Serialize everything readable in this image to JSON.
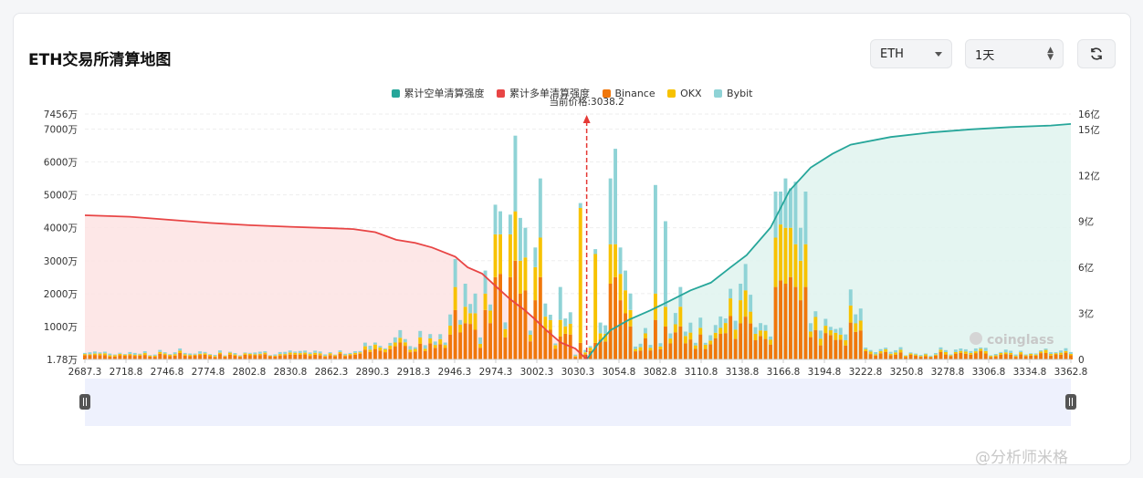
{
  "header": {
    "title": "ETH交易所清算地图",
    "asset_select": "ETH",
    "period_select": "1天",
    "refresh_icon": "refresh-icon"
  },
  "legend": [
    {
      "label": "累计空单清算强度",
      "color": "#26a69a"
    },
    {
      "label": "累计多单清算强度",
      "color": "#e84545"
    },
    {
      "label": "Binance",
      "color": "#f0770b"
    },
    {
      "label": "OKX",
      "color": "#f7c200"
    },
    {
      "label": "Bybit",
      "color": "#8fd3d6"
    }
  ],
  "chart_data": {
    "type": "bar",
    "current_price_label": "当前价格:3038.2",
    "current_price": 3038.2,
    "x_range": [
      2687.3,
      3376.8
    ],
    "x_ticks": [
      "2687.3",
      "2718.8",
      "2746.8",
      "2774.8",
      "2802.8",
      "2830.8",
      "2862.3",
      "2890.3",
      "2918.3",
      "2946.3",
      "2974.3",
      "3002.3",
      "3030.3",
      "3054.8",
      "3082.8",
      "3110.8",
      "3138.8",
      "3166.8",
      "3194.8",
      "3222.8",
      "3250.8",
      "3278.8",
      "3306.8",
      "3334.8",
      "3362.8"
    ],
    "y_left_ticks": [
      {
        "label": "1.78万",
        "value": 1.78
      },
      {
        "label": "1000万",
        "value": 1000
      },
      {
        "label": "2000万",
        "value": 2000
      },
      {
        "label": "3000万",
        "value": 3000
      },
      {
        "label": "4000万",
        "value": 4000
      },
      {
        "label": "5000万",
        "value": 5000
      },
      {
        "label": "6000万",
        "value": 6000
      },
      {
        "label": "7000万",
        "value": 7000
      },
      {
        "label": "7456万",
        "value": 7456
      }
    ],
    "y_left_range": [
      0,
      7456
    ],
    "y_right_ticks": [
      {
        "label": "0",
        "value": 0
      },
      {
        "label": "3亿",
        "value": 3
      },
      {
        "label": "6亿",
        "value": 6
      },
      {
        "label": "9亿",
        "value": 9
      },
      {
        "label": "12亿",
        "value": 12
      },
      {
        "label": "15亿",
        "value": 15
      },
      {
        "label": "16亿",
        "value": 16
      }
    ],
    "y_right_range": [
      0,
      16
    ],
    "long_cumulative": {
      "name": "累计多单清算强度",
      "x": [
        2687.3,
        2718.8,
        2746.8,
        2774.8,
        2802.8,
        2830.8,
        2862.3,
        2875,
        2890.3,
        2905,
        2918.3,
        2930,
        2946.3,
        2955,
        2965,
        2974.3,
        2985,
        2995,
        3002.3,
        3010,
        3020,
        3030.3,
        3038.2
      ],
      "y": [
        9.4,
        9.3,
        9.1,
        8.9,
        8.75,
        8.65,
        8.55,
        8.5,
        8.3,
        7.8,
        7.6,
        7.3,
        6.7,
        6.0,
        5.6,
        4.8,
        3.9,
        3.2,
        2.6,
        1.9,
        1.1,
        0.7,
        0.0
      ]
    },
    "short_cumulative": {
      "name": "累计空单清算强度",
      "x": [
        3038.2,
        3046,
        3054.8,
        3068,
        3082.8,
        3096,
        3110.8,
        3125,
        3138.8,
        3150,
        3166.8,
        3180,
        3194.8,
        3210,
        3222.8,
        3250.8,
        3278.8,
        3306.8,
        3334.8,
        3362.8,
        3376.8
      ],
      "y": [
        0.0,
        1.0,
        1.9,
        2.6,
        3.2,
        3.8,
        4.5,
        5.0,
        6.0,
        6.8,
        8.6,
        11.0,
        12.5,
        13.4,
        14.0,
        14.5,
        14.8,
        15.0,
        15.15,
        15.25,
        15.35
      ]
    },
    "bars": {
      "step": 3.5,
      "x_start": 2687.3,
      "seed": 7,
      "peaks": [
        {
          "x": 2946.3,
          "binance": 1500,
          "okx": 700,
          "bybit": 850
        },
        {
          "x": 2953.3,
          "binance": 1100,
          "okx": 500,
          "bybit": 700
        },
        {
          "x": 2960.3,
          "binance": 900,
          "okx": 500,
          "bybit": 600
        },
        {
          "x": 2967.3,
          "binance": 1500,
          "okx": 500,
          "bybit": 700
        },
        {
          "x": 2974.3,
          "binance": 2500,
          "okx": 1300,
          "bybit": 900
        },
        {
          "x": 2977.8,
          "binance": 2600,
          "okx": 1200,
          "bybit": 700
        },
        {
          "x": 2984.8,
          "binance": 2500,
          "okx": 1300,
          "bybit": 600
        },
        {
          "x": 2988.3,
          "binance": 3000,
          "okx": 1500,
          "bybit": 2300
        },
        {
          "x": 2991.8,
          "binance": 2000,
          "okx": 1000,
          "bybit": 1300
        },
        {
          "x": 2995.3,
          "binance": 2100,
          "okx": 1000,
          "bybit": 900
        },
        {
          "x": 3002.3,
          "binance": 1800,
          "okx": 1000,
          "bybit": 600
        },
        {
          "x": 3005.8,
          "binance": 2500,
          "okx": 1200,
          "bybit": 1800
        },
        {
          "x": 3009.3,
          "binance": 900,
          "okx": 400,
          "bybit": 400
        },
        {
          "x": 3019.8,
          "binance": 700,
          "okx": 500,
          "bybit": 1000
        },
        {
          "x": 3033.8,
          "binance": 500,
          "okx": 4100,
          "bybit": 150
        },
        {
          "x": 3044.3,
          "binance": 500,
          "okx": 2700,
          "bybit": 150
        },
        {
          "x": 3054.8,
          "binance": 2300,
          "okx": 1200,
          "bybit": 2000
        },
        {
          "x": 3058.3,
          "binance": 2500,
          "okx": 1000,
          "bybit": 2900
        },
        {
          "x": 3061.8,
          "binance": 1800,
          "okx": 800,
          "bybit": 800
        },
        {
          "x": 3065.3,
          "binance": 1400,
          "okx": 700,
          "bybit": 600
        },
        {
          "x": 3068.8,
          "binance": 1000,
          "okx": 500,
          "bybit": 500
        },
        {
          "x": 3086.3,
          "binance": 1200,
          "okx": 800,
          "bybit": 3300
        },
        {
          "x": 3093.3,
          "binance": 1000,
          "okx": 600,
          "bybit": 2600
        },
        {
          "x": 3103.8,
          "binance": 1000,
          "okx": 600,
          "bybit": 600
        },
        {
          "x": 3145.8,
          "binance": 1100,
          "okx": 700,
          "bybit": 500
        },
        {
          "x": 3149.3,
          "binance": 1300,
          "okx": 800,
          "bybit": 800
        },
        {
          "x": 3170.3,
          "binance": 2200,
          "okx": 1500,
          "bybit": 1400
        },
        {
          "x": 3173.8,
          "binance": 2400,
          "okx": 1700,
          "bybit": 1000
        },
        {
          "x": 3177.3,
          "binance": 2300,
          "okx": 1700,
          "bybit": 1500
        },
        {
          "x": 3180.8,
          "binance": 2500,
          "okx": 1500,
          "bybit": 1200
        },
        {
          "x": 3184.3,
          "binance": 2200,
          "okx": 1300,
          "bybit": 1900
        },
        {
          "x": 3187.8,
          "binance": 1800,
          "okx": 1200,
          "bybit": 1000
        },
        {
          "x": 3191.3,
          "binance": 2200,
          "okx": 1300,
          "bybit": 1600
        }
      ]
    }
  },
  "brand": {
    "chart_watermark": "coinglass",
    "corner_watermark": "@分析师米格"
  }
}
